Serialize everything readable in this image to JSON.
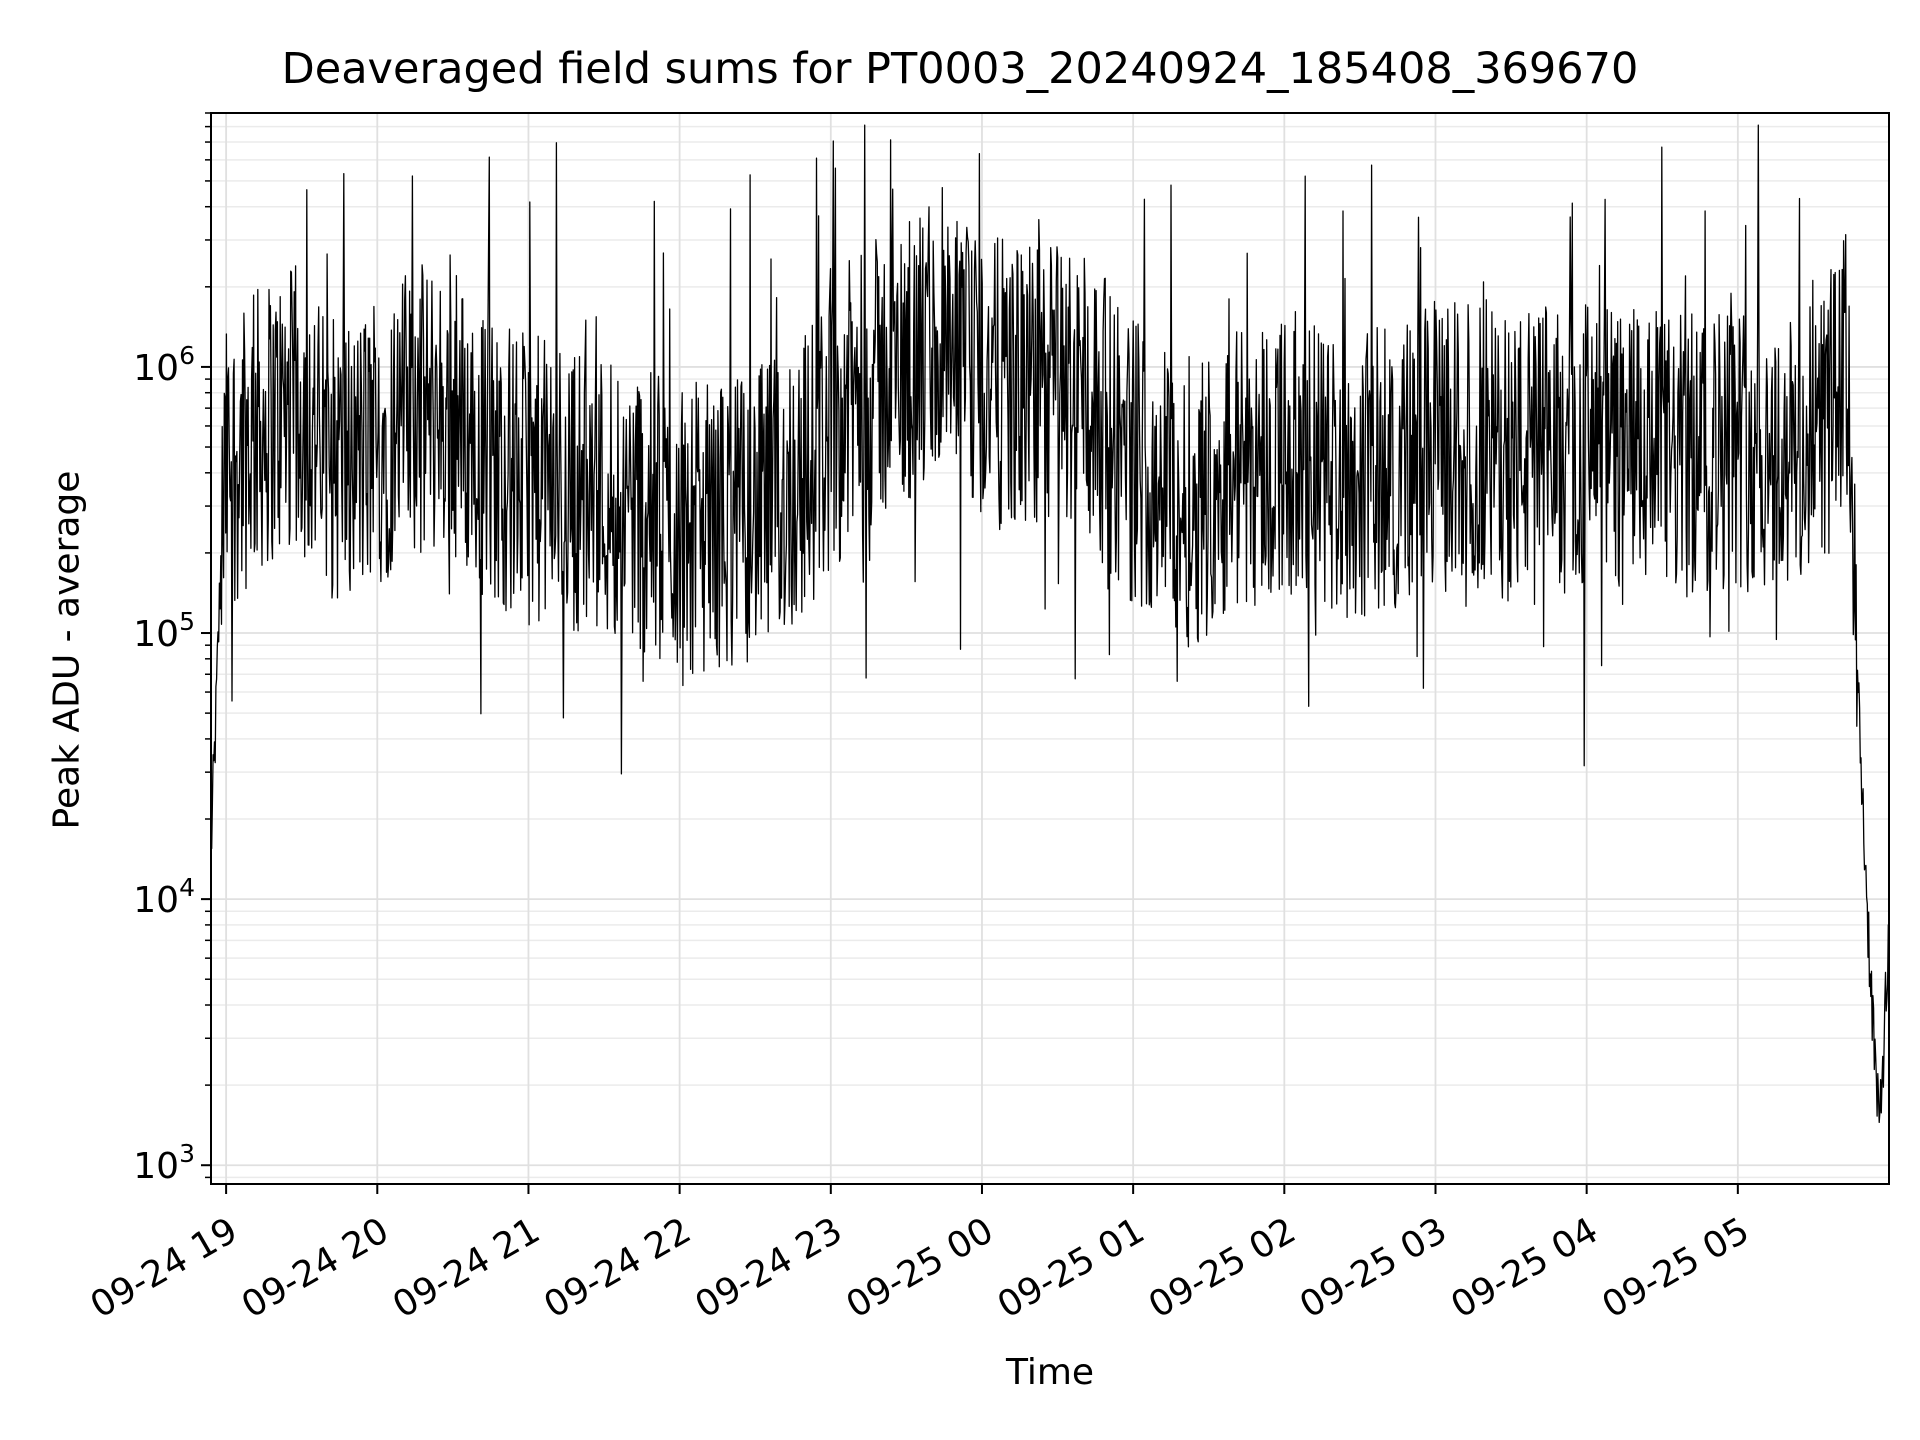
{
  "chart_data": {
    "type": "line",
    "title": "Deaveraged field sums for PT0003_20240924_185408_369670",
    "xlabel": "Time",
    "ylabel": "Peak ADU - average",
    "y_scale": "log",
    "ylim": [
      850,
      9000000
    ],
    "xlim": [
      "2024-09-24 18:54",
      "2024-09-25 06:00"
    ],
    "grid": true,
    "grid_minor": true,
    "line_color": "#000000",
    "x_ticks": [
      {
        "value": "2024-09-24 19:00",
        "label": "09-24 19"
      },
      {
        "value": "2024-09-24 20:00",
        "label": "09-24 20"
      },
      {
        "value": "2024-09-24 21:00",
        "label": "09-24 21"
      },
      {
        "value": "2024-09-24 22:00",
        "label": "09-24 22"
      },
      {
        "value": "2024-09-24 23:00",
        "label": "09-24 23"
      },
      {
        "value": "2024-09-25 00:00",
        "label": "09-25 00"
      },
      {
        "value": "2024-09-25 01:00",
        "label": "09-25 01"
      },
      {
        "value": "2024-09-25 02:00",
        "label": "09-25 02"
      },
      {
        "value": "2024-09-25 03:00",
        "label": "09-25 03"
      },
      {
        "value": "2024-09-25 04:00",
        "label": "09-25 04"
      },
      {
        "value": "2024-09-25 05:00",
        "label": "09-25 05"
      }
    ],
    "y_ticks": [
      {
        "value": 1000,
        "base": "10",
        "exp": "3"
      },
      {
        "value": 10000,
        "base": "10",
        "exp": "4"
      },
      {
        "value": 100000,
        "base": "10",
        "exp": "5"
      },
      {
        "value": 1000000,
        "base": "10",
        "exp": "6"
      }
    ],
    "series": [
      {
        "x": [
          "2024-09-24 18:54",
          "2024-09-24 18:56",
          "2024-09-24 18:58",
          "2024-09-24 19:00",
          "2024-09-24 19:10",
          "2024-09-24 19:20",
          "2024-09-24 19:30",
          "2024-09-24 19:40",
          "2024-09-24 19:50",
          "2024-09-24 20:00",
          "2024-09-24 20:10",
          "2024-09-24 20:20",
          "2024-09-24 20:30",
          "2024-09-24 20:40",
          "2024-09-24 20:50",
          "2024-09-24 21:00",
          "2024-09-24 21:10",
          "2024-09-24 21:20",
          "2024-09-24 21:30",
          "2024-09-24 21:40",
          "2024-09-24 21:50",
          "2024-09-24 22:00",
          "2024-09-24 22:10",
          "2024-09-24 22:20",
          "2024-09-24 22:30",
          "2024-09-24 22:40",
          "2024-09-24 22:50",
          "2024-09-24 23:00",
          "2024-09-24 23:10",
          "2024-09-24 23:20",
          "2024-09-24 23:30",
          "2024-09-24 23:40",
          "2024-09-24 23:50",
          "2024-09-25 00:00",
          "2024-09-25 00:10",
          "2024-09-25 00:20",
          "2024-09-25 00:30",
          "2024-09-25 00:40",
          "2024-09-25 00:50",
          "2024-09-25 01:00",
          "2024-09-25 01:10",
          "2024-09-25 01:20",
          "2024-09-25 01:30",
          "2024-09-25 01:40",
          "2024-09-25 01:50",
          "2024-09-25 02:00",
          "2024-09-25 02:10",
          "2024-09-25 02:20",
          "2024-09-25 02:30",
          "2024-09-25 02:40",
          "2024-09-25 02:50",
          "2024-09-25 03:00",
          "2024-09-25 03:10",
          "2024-09-25 03:20",
          "2024-09-25 03:30",
          "2024-09-25 03:40",
          "2024-09-25 03:50",
          "2024-09-25 04:00",
          "2024-09-25 04:10",
          "2024-09-25 04:20",
          "2024-09-25 04:30",
          "2024-09-25 04:40",
          "2024-09-25 04:50",
          "2024-09-25 05:00",
          "2024-09-25 05:10",
          "2024-09-25 05:20",
          "2024-09-25 05:30",
          "2024-09-25 05:40",
          "2024-09-25 05:44",
          "2024-09-25 05:48",
          "2024-09-25 05:52",
          "2024-09-25 05:56",
          "2024-09-25 06:00"
        ],
        "y": [
          15000,
          50000,
          200000,
          400000,
          550000,
          650000,
          700000,
          450000,
          450000,
          500000,
          650000,
          700000,
          650000,
          500000,
          420000,
          380000,
          360000,
          350000,
          340000,
          320000,
          270000,
          250000,
          250000,
          260000,
          280000,
          320000,
          400000,
          600000,
          750000,
          900000,
          1000000,
          1100000,
          1000000,
          900000,
          850000,
          800000,
          900000,
          800000,
          600000,
          450000,
          400000,
          300000,
          350000,
          420000,
          450000,
          480000,
          430000,
          400000,
          380000,
          420000,
          450000,
          500000,
          520000,
          480000,
          450000,
          500000,
          480000,
          520000,
          500000,
          480000,
          460000,
          450000,
          500000,
          520000,
          480000,
          450000,
          500000,
          800000,
          1000000,
          50000,
          7000,
          1300,
          7000
        ]
      }
    ]
  }
}
